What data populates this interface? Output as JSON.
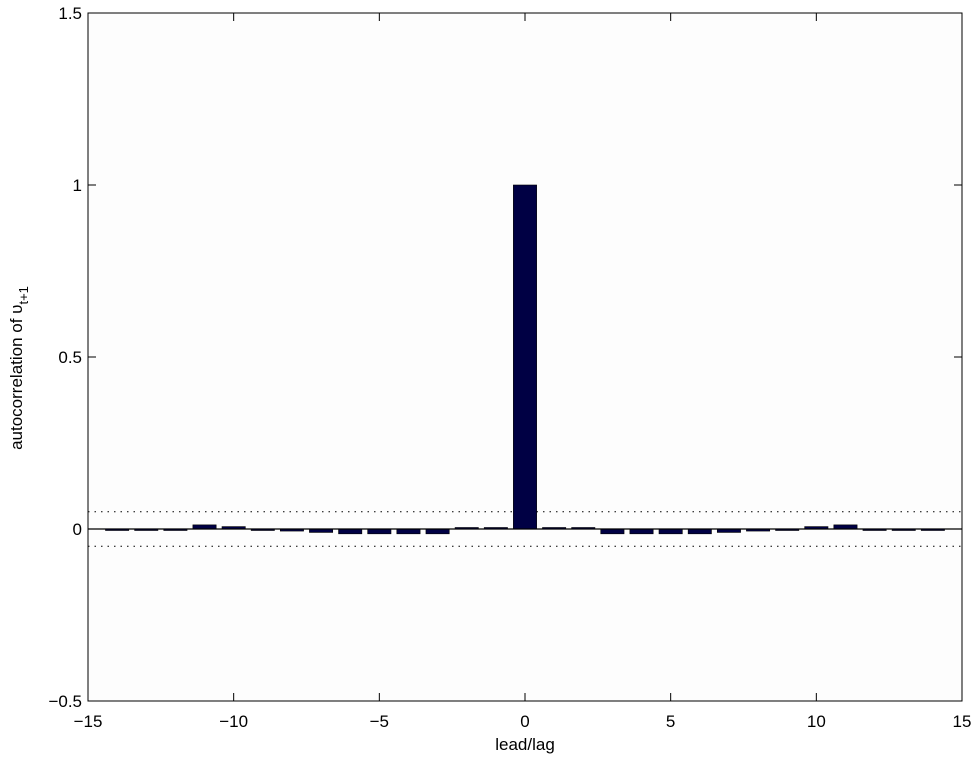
{
  "chart_data": {
    "type": "bar",
    "xlabel": "lead/lag",
    "ylabel_main": "autocorrelation of ",
    "ylabel_symbol": "υ",
    "ylabel_subscript": "t+1",
    "xlim": [
      -15,
      15
    ],
    "ylim": [
      -0.5,
      1.5
    ],
    "xticks": [
      -15,
      -10,
      -5,
      0,
      5,
      10,
      15
    ],
    "xtick_labels": [
      "−15",
      "−10",
      "−5",
      "0",
      "5",
      "10",
      "15"
    ],
    "yticks": [
      -0.5,
      0,
      0.5,
      1,
      1.5
    ],
    "ytick_labels": [
      "−0.5",
      "0",
      "0.5",
      "1",
      "1.5"
    ],
    "bar_color": "#000044",
    "confidence_band": [
      0.05,
      -0.05
    ],
    "x": [
      -14,
      -13,
      -12,
      -11,
      -10,
      -9,
      -8,
      -7,
      -6,
      -5,
      -4,
      -3,
      -2,
      -1,
      0,
      1,
      2,
      3,
      4,
      5,
      6,
      7,
      8,
      9,
      10,
      11,
      12,
      13,
      14
    ],
    "values": [
      -0.003,
      -0.003,
      -0.003,
      0.012,
      0.007,
      -0.002,
      -0.006,
      -0.01,
      -0.014,
      -0.014,
      -0.014,
      -0.014,
      0.001,
      0.003,
      1.0,
      0.003,
      0.001,
      -0.014,
      -0.014,
      -0.014,
      -0.014,
      -0.01,
      -0.006,
      -0.002,
      0.007,
      0.012,
      -0.003,
      -0.003,
      -0.003
    ],
    "grid": false,
    "legend": "none"
  }
}
